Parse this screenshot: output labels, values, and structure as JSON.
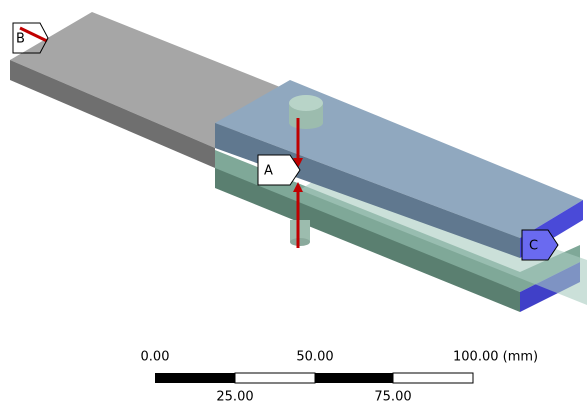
{
  "tags": {
    "a": "A",
    "b": "B",
    "c": "C"
  },
  "scale_bar": {
    "top_labels": [
      "0.00",
      "50.00",
      "100.00 (mm)"
    ],
    "bottom_labels": [
      "25.00",
      "75.00"
    ]
  }
}
